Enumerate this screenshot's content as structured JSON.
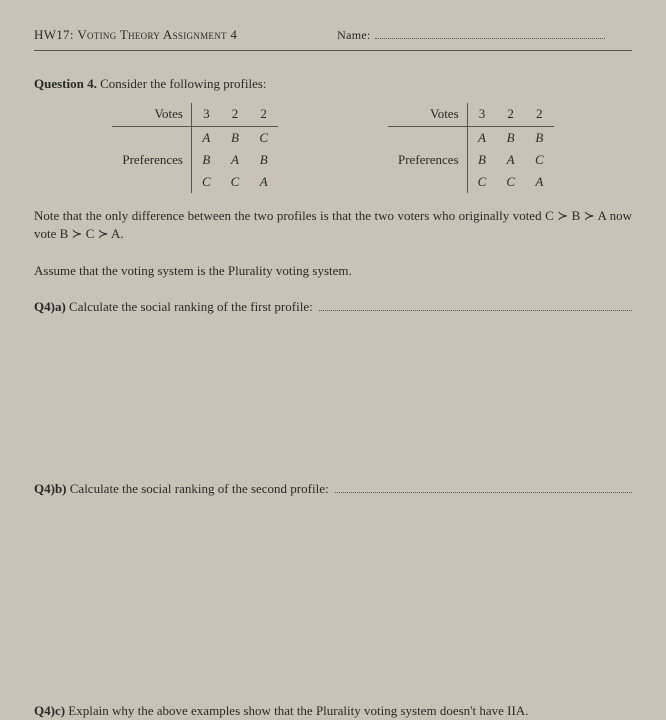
{
  "header": {
    "hw_code": "HW17:",
    "title_sc": "Voting Theory Assignment 4",
    "name_label": "Name:"
  },
  "question": {
    "label": "Question 4.",
    "prompt": "Consider the following profiles:"
  },
  "profile1": {
    "votes_label": "Votes",
    "votes": [
      "3",
      "2",
      "2"
    ],
    "pref_label": "Preferences",
    "rows": [
      [
        "A",
        "B",
        "C"
      ],
      [
        "B",
        "A",
        "B"
      ],
      [
        "C",
        "C",
        "A"
      ]
    ]
  },
  "profile2": {
    "votes_label": "Votes",
    "votes": [
      "3",
      "2",
      "2"
    ],
    "pref_label": "Preferences",
    "rows": [
      [
        "A",
        "B",
        "B"
      ],
      [
        "B",
        "A",
        "C"
      ],
      [
        "C",
        "C",
        "A"
      ]
    ]
  },
  "note": "Note that the only difference between the two profiles is that the two voters who originally voted C ≻ B ≻ A now vote B ≻ C ≻ A.",
  "assume": "Assume that the voting system is the Plurality voting system.",
  "q4a": {
    "label": "Q4)a)",
    "text": "Calculate the social ranking of the first profile:"
  },
  "q4b": {
    "label": "Q4)b)",
    "text": "Calculate the social ranking of the second profile:"
  },
  "q4c": {
    "label": "Q4)c)",
    "text": "Explain why the above examples show that the Plurality voting system doesn't have IIA."
  }
}
